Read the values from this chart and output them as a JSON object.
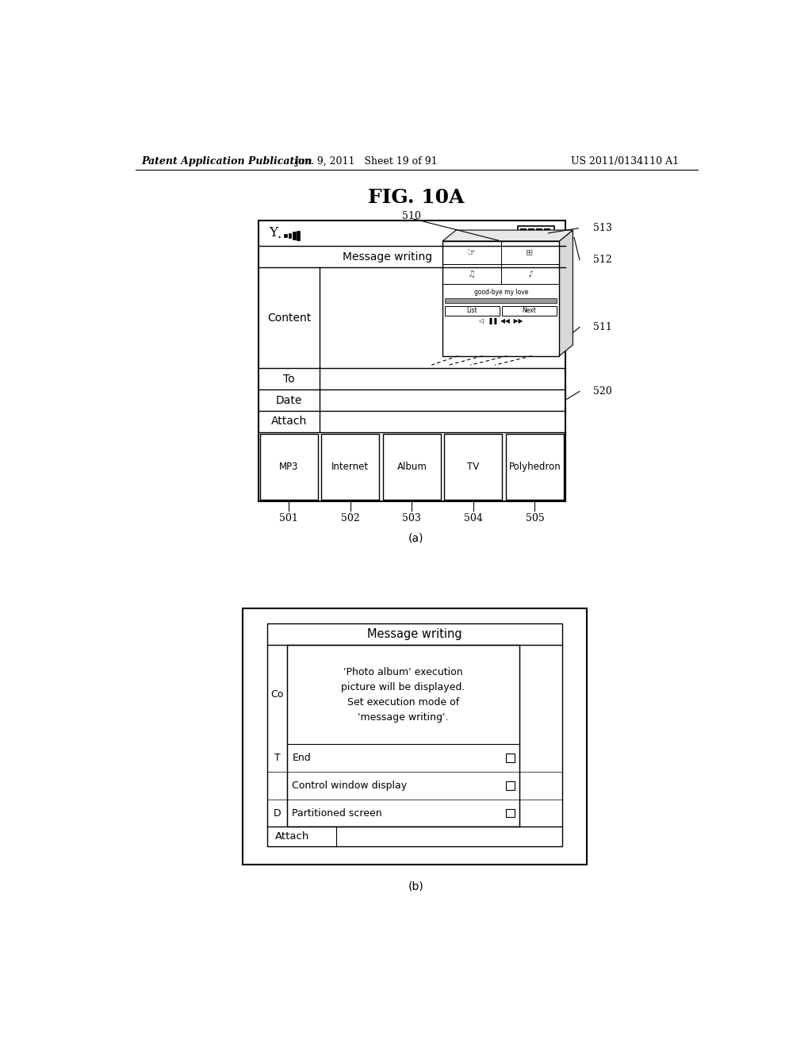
{
  "bg_color": "#ffffff",
  "header_left": "Patent Application Publication",
  "header_mid": "Jun. 9, 2011   Sheet 19 of 91",
  "header_right": "US 2011/0134110 A1",
  "fig_title": "FIG. 10A",
  "panel_a_label": "(a)",
  "panel_b_label": "(b)",
  "bottom_tabs": [
    "MP3",
    "Internet",
    "Album",
    "TV",
    "Polyhedron"
  ],
  "popup_text_line1": "'Photo album' execution",
  "popup_text_line2": "picture will be displayed.",
  "popup_text_line3": "Set execution mode of",
  "popup_text_line4": "'message writing'.",
  "popup_options": [
    "End",
    "Control window display",
    "Partitioned screen"
  ],
  "ref_510": "510",
  "ref_511": "511",
  "ref_512": "512",
  "ref_513": "513",
  "ref_520": "520",
  "ref_501": "501",
  "ref_502": "502",
  "ref_503": "503",
  "ref_504": "504",
  "ref_505": "505"
}
